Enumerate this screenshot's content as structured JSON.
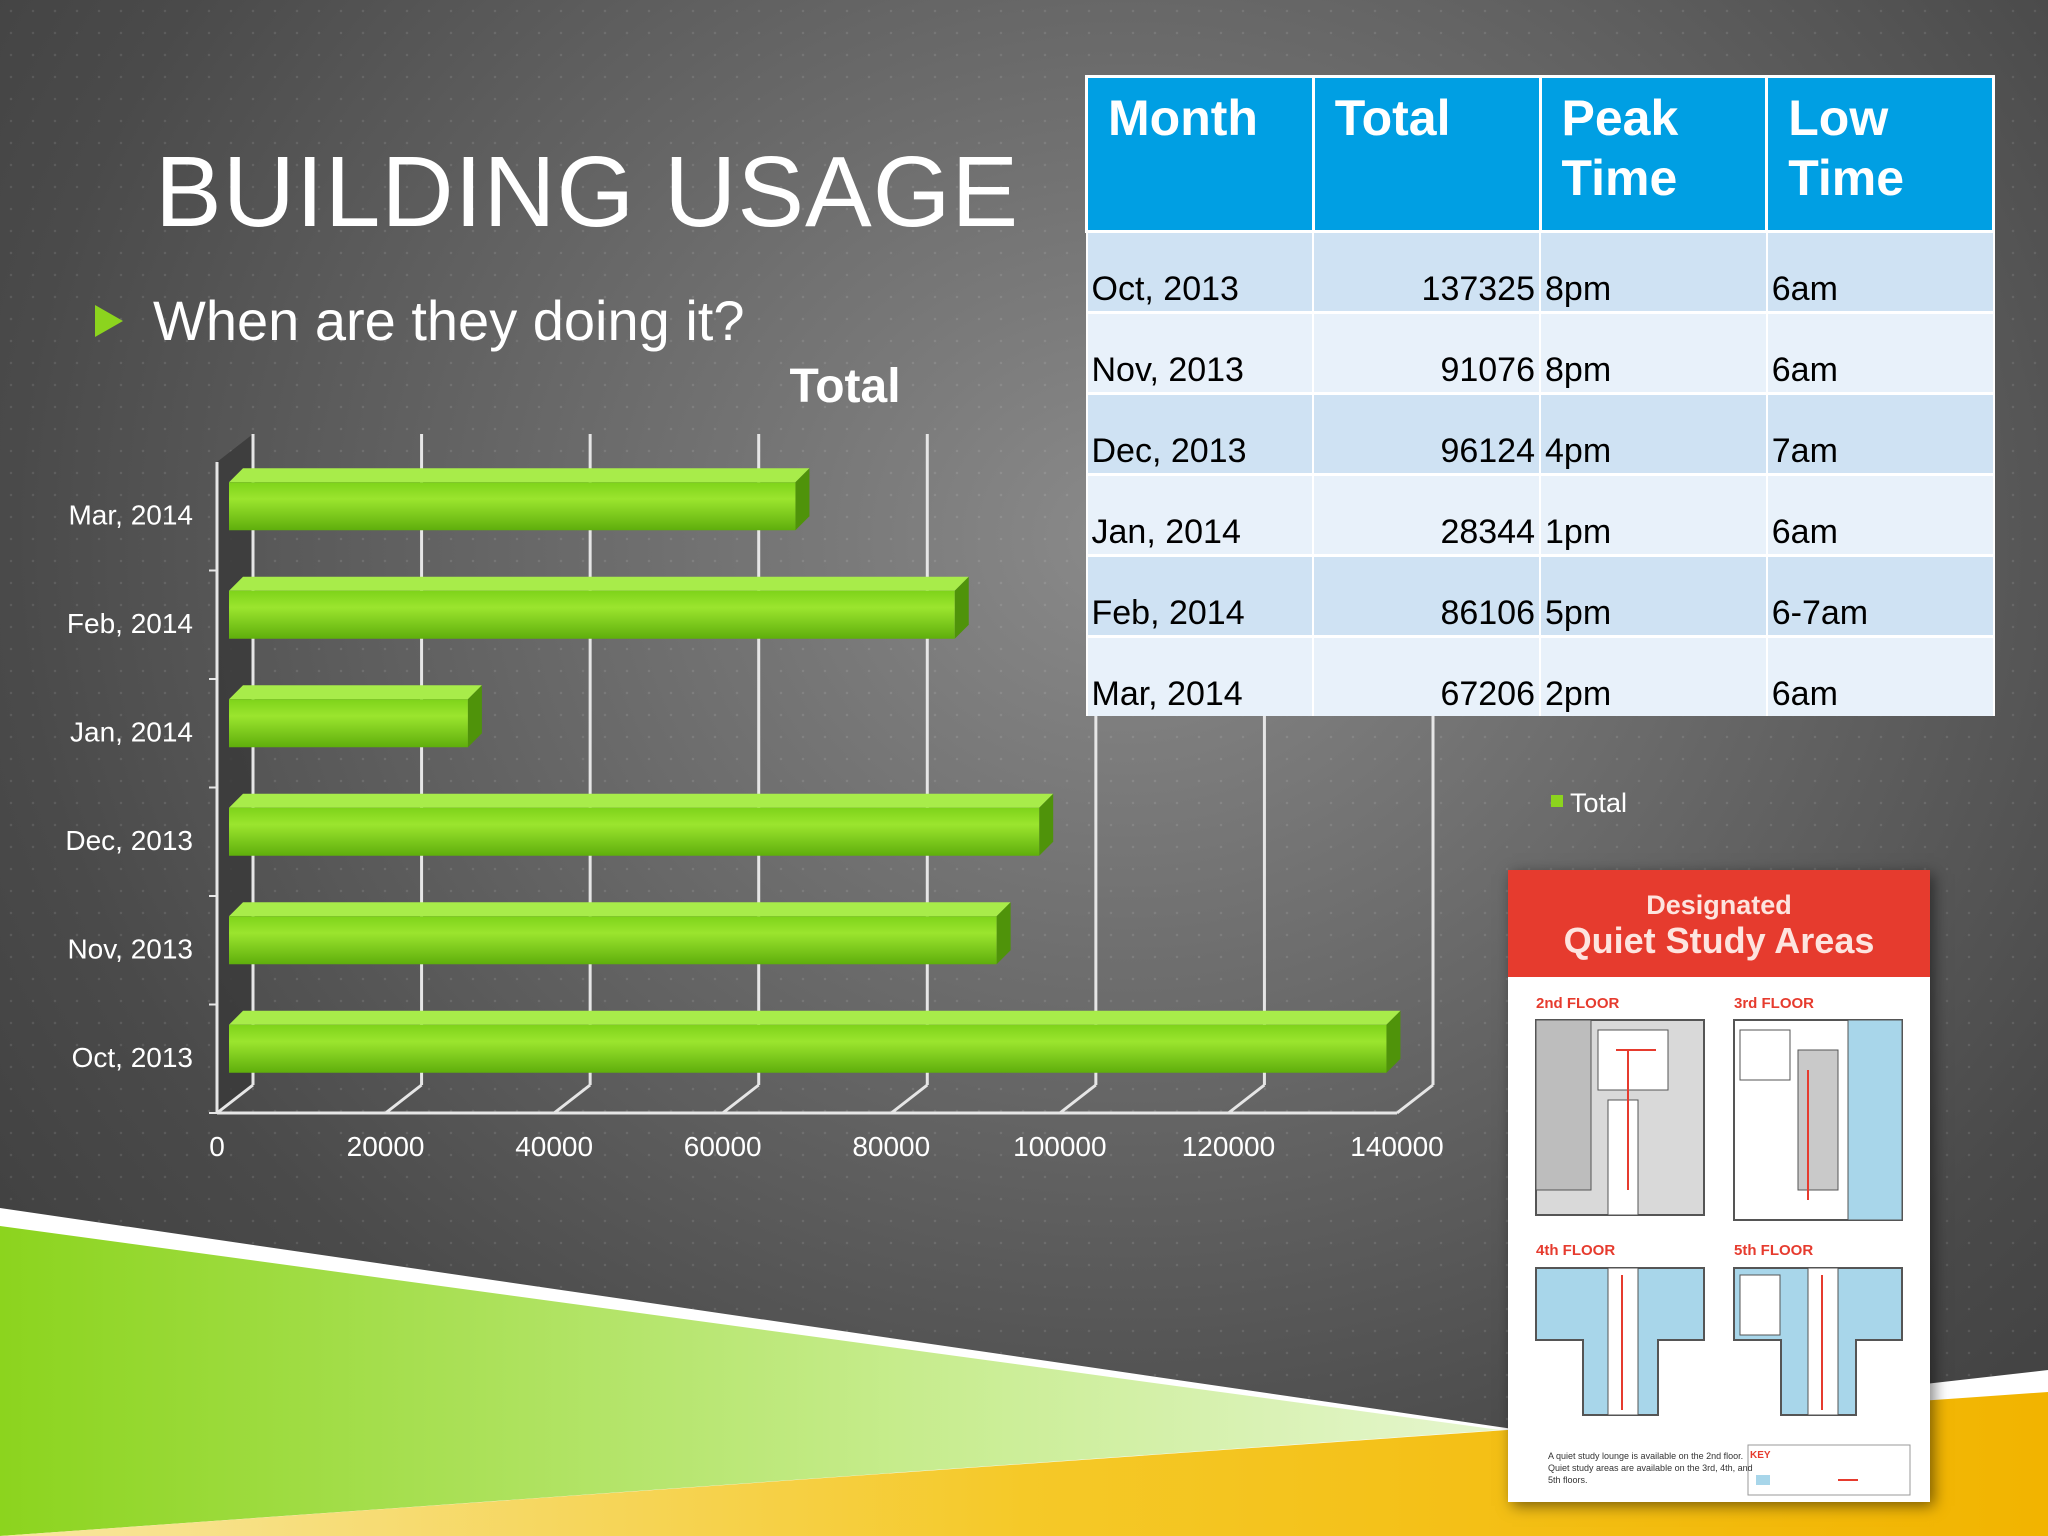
{
  "slide": {
    "title": "BUILDING USAGE",
    "bullet": "When are they doing it?"
  },
  "colors": {
    "accent_green": "#8cd41e",
    "table_header_blue": "#009fe3",
    "poster_red": "#e63b2e"
  },
  "table": {
    "headers": [
      "Month",
      "Total",
      "Peak Time",
      "Low Time"
    ],
    "rows": [
      [
        "Oct, 2013",
        "137325",
        "8pm",
        "6am"
      ],
      [
        "Nov, 2013",
        "91076",
        "8pm",
        "6am"
      ],
      [
        "Dec, 2013",
        "96124",
        "4pm",
        "7am"
      ],
      [
        "Jan, 2014",
        "28344",
        "1pm",
        "6am"
      ],
      [
        "Feb, 2014",
        "86106",
        "5pm",
        "6-7am"
      ],
      [
        "Mar, 2014",
        "67206",
        "2pm",
        "6am"
      ]
    ]
  },
  "chart_data": {
    "type": "bar",
    "orientation": "horizontal",
    "title": "Total",
    "categories": [
      "Oct, 2013",
      "Nov, 2013",
      "Dec, 2013",
      "Jan, 2014",
      "Feb, 2014",
      "Mar, 2014"
    ],
    "values": [
      137325,
      91076,
      96124,
      28344,
      86106,
      67206
    ],
    "series": [
      {
        "name": "Total",
        "values": [
          137325,
          91076,
          96124,
          28344,
          86106,
          67206
        ]
      }
    ],
    "xlim": [
      0,
      140000
    ],
    "xticks": [
      0,
      20000,
      40000,
      60000,
      80000,
      100000,
      120000,
      140000
    ],
    "grid": true,
    "legend": "right",
    "legend_label": "Total",
    "color": "#8cd41e"
  },
  "poster": {
    "title_line1": "Designated",
    "title_line2": "Quiet Study Areas",
    "floors": [
      "2nd FLOOR",
      "3rd FLOOR",
      "4th FLOOR",
      "5th FLOOR"
    ],
    "note": "A quiet study lounge is available on the 2nd floor. Quiet study areas are available on the 3rd, 4th, and 5th floors.",
    "key_label": "KEY",
    "key_items": [
      "Quiet Study Area",
      "Path"
    ]
  }
}
